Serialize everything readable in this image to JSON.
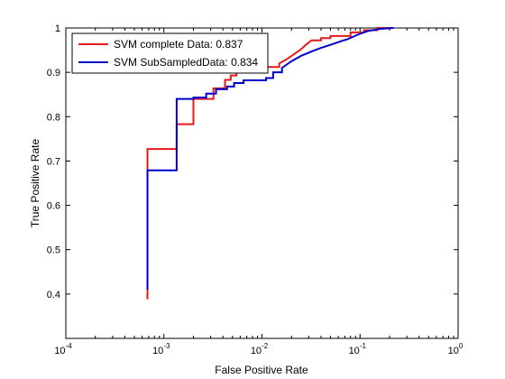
{
  "chart_data": {
    "type": "line",
    "title": "",
    "xlabel": "False Positive Rate",
    "ylabel": "True Positive Rate",
    "xscale": "log",
    "xlim": [
      0.0001,
      1
    ],
    "ylim": [
      0.3,
      1
    ],
    "x_ticks": [
      {
        "value": 0.0001,
        "base": "10",
        "exp": "-4"
      },
      {
        "value": 0.001,
        "base": "10",
        "exp": "-3"
      },
      {
        "value": 0.01,
        "base": "10",
        "exp": "-2"
      },
      {
        "value": 0.1,
        "base": "10",
        "exp": "-1"
      },
      {
        "value": 1,
        "base": "10",
        "exp": "0"
      }
    ],
    "y_ticks": [
      "0.4",
      "0.5",
      "0.6",
      "0.7",
      "0.8",
      "0.9",
      "1"
    ],
    "grid": false,
    "legend_position": "top-left",
    "series": [
      {
        "name": "SVM complete Data: 0.837",
        "color": "#e41a1c",
        "points": [
          [
            0.00068,
            0.388
          ],
          [
            0.00068,
            0.727
          ],
          [
            0.00135,
            0.727
          ],
          [
            0.00135,
            0.783
          ],
          [
            0.002,
            0.783
          ],
          [
            0.002,
            0.84
          ],
          [
            0.0032,
            0.84
          ],
          [
            0.0032,
            0.864
          ],
          [
            0.0042,
            0.864
          ],
          [
            0.0042,
            0.883
          ],
          [
            0.0048,
            0.883
          ],
          [
            0.0048,
            0.893
          ],
          [
            0.0055,
            0.893
          ],
          [
            0.0055,
            0.9
          ],
          [
            0.0065,
            0.9
          ],
          [
            0.0065,
            0.906
          ],
          [
            0.0085,
            0.906
          ],
          [
            0.0085,
            0.912
          ],
          [
            0.015,
            0.912
          ],
          [
            0.015,
            0.92
          ],
          [
            0.018,
            0.93
          ],
          [
            0.021,
            0.94
          ],
          [
            0.025,
            0.952
          ],
          [
            0.028,
            0.962
          ],
          [
            0.032,
            0.972
          ],
          [
            0.04,
            0.972
          ],
          [
            0.04,
            0.977
          ],
          [
            0.05,
            0.977
          ],
          [
            0.05,
            0.982
          ],
          [
            0.08,
            0.982
          ],
          [
            0.08,
            0.99
          ],
          [
            0.11,
            0.99
          ],
          [
            0.11,
            0.995
          ],
          [
            0.15,
            0.995
          ],
          [
            0.15,
            1.0
          ],
          [
            0.22,
            1.0
          ]
        ]
      },
      {
        "name": "SVM SubSampledData: 0.834",
        "color": "#0000cc",
        "points": [
          [
            0.00068,
            0.41
          ],
          [
            0.00068,
            0.679
          ],
          [
            0.00135,
            0.679
          ],
          [
            0.00135,
            0.84
          ],
          [
            0.002,
            0.84
          ],
          [
            0.002,
            0.843
          ],
          [
            0.0027,
            0.843
          ],
          [
            0.0027,
            0.852
          ],
          [
            0.0034,
            0.852
          ],
          [
            0.0034,
            0.862
          ],
          [
            0.0044,
            0.862
          ],
          [
            0.0044,
            0.868
          ],
          [
            0.0052,
            0.868
          ],
          [
            0.0052,
            0.876
          ],
          [
            0.0065,
            0.876
          ],
          [
            0.0065,
            0.882
          ],
          [
            0.011,
            0.882
          ],
          [
            0.011,
            0.887
          ],
          [
            0.013,
            0.887
          ],
          [
            0.013,
            0.9
          ],
          [
            0.016,
            0.9
          ],
          [
            0.016,
            0.91
          ],
          [
            0.02,
            0.925
          ],
          [
            0.025,
            0.937
          ],
          [
            0.032,
            0.947
          ],
          [
            0.04,
            0.955
          ],
          [
            0.05,
            0.962
          ],
          [
            0.06,
            0.968
          ],
          [
            0.075,
            0.975
          ],
          [
            0.095,
            0.985
          ],
          [
            0.12,
            0.993
          ],
          [
            0.16,
            0.998
          ],
          [
            0.22,
            1.0
          ]
        ]
      }
    ]
  }
}
